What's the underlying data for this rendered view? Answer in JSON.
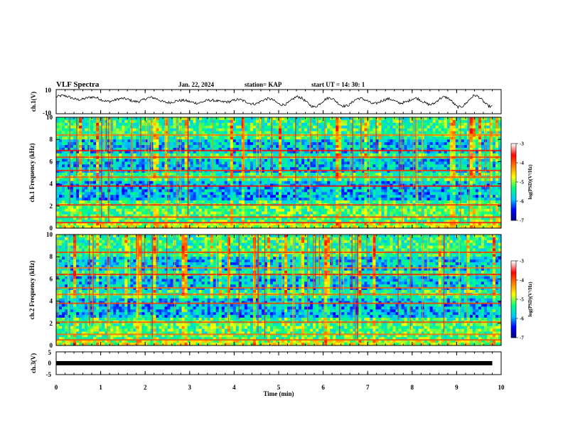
{
  "header": {
    "title": "VLF Spectra",
    "date": "Jan. 22, 2024",
    "station": "station= KAP",
    "start_ut": "start UT =   14: 30: 1"
  },
  "colorbar": {
    "label": "log(PSD)(V²/Hz)",
    "ticks": [
      "-3",
      "-4",
      "-5",
      "-6",
      "-7"
    ],
    "min": -7,
    "max": -3,
    "colors": [
      "#000080",
      "#0000ff",
      "#00c8ff",
      "#00ff80",
      "#ffff00",
      "#ff8000",
      "#ff0000",
      "#ffffff"
    ]
  },
  "chart_data": [
    {
      "type": "line",
      "panel": "ch1-waveform",
      "ylabel": "ch.1(V)",
      "ylim": [
        -10,
        10
      ],
      "y_ticks": [
        "10",
        "-10"
      ],
      "xlim": [
        0,
        10
      ],
      "series": [
        {
          "x": [
            0,
            0.5,
            1,
            1.5,
            2,
            2.5,
            2.8,
            3.1,
            3.5,
            3.8,
            4.2,
            4.6,
            5.0,
            5.4,
            5.8,
            6.2,
            6.6,
            7.0,
            7.4,
            7.8,
            8.2,
            8.6,
            9.0,
            9.4,
            9.8
          ],
          "y": [
            4,
            3,
            2,
            1,
            2,
            1,
            -1,
            1,
            -1,
            2,
            -1,
            1,
            -1,
            2,
            -2,
            1,
            -2,
            2,
            -1,
            2,
            -1,
            2,
            -2,
            2,
            -1
          ],
          "color": "#000000"
        }
      ]
    },
    {
      "type": "heatmap",
      "panel": "ch1-spectrogram",
      "ylabel": "ch.1 Frequency (kHz)",
      "ylim": [
        0,
        10
      ],
      "y_ticks": [
        "0",
        "2",
        "4",
        "6",
        "8",
        "10"
      ],
      "xlim": [
        0,
        10
      ],
      "zlim": [
        -7,
        -3
      ]
    },
    {
      "type": "heatmap",
      "panel": "ch2-spectrogram",
      "ylabel": "ch.2 Frequency (kHz)",
      "ylim": [
        0,
        10
      ],
      "y_ticks": [
        "0",
        "2",
        "4",
        "6",
        "8",
        "10"
      ],
      "xlim": [
        0,
        10
      ],
      "zlim": [
        -7,
        -3
      ]
    },
    {
      "type": "line",
      "panel": "ch3-waveform",
      "ylabel": "ch.3(V)",
      "ylim": [
        -5,
        5
      ],
      "y_ticks": [
        "5",
        "0",
        "-5"
      ],
      "xlim": [
        0,
        10
      ],
      "series": [
        {
          "x": [
            0,
            9.8
          ],
          "y": [
            0,
            0
          ],
          "color": "#000000"
        }
      ]
    }
  ],
  "xaxis": {
    "label": "Time  (min)",
    "ticks": [
      "0",
      "1",
      "2",
      "3",
      "4",
      "5",
      "6",
      "7",
      "8",
      "9",
      "10"
    ]
  }
}
